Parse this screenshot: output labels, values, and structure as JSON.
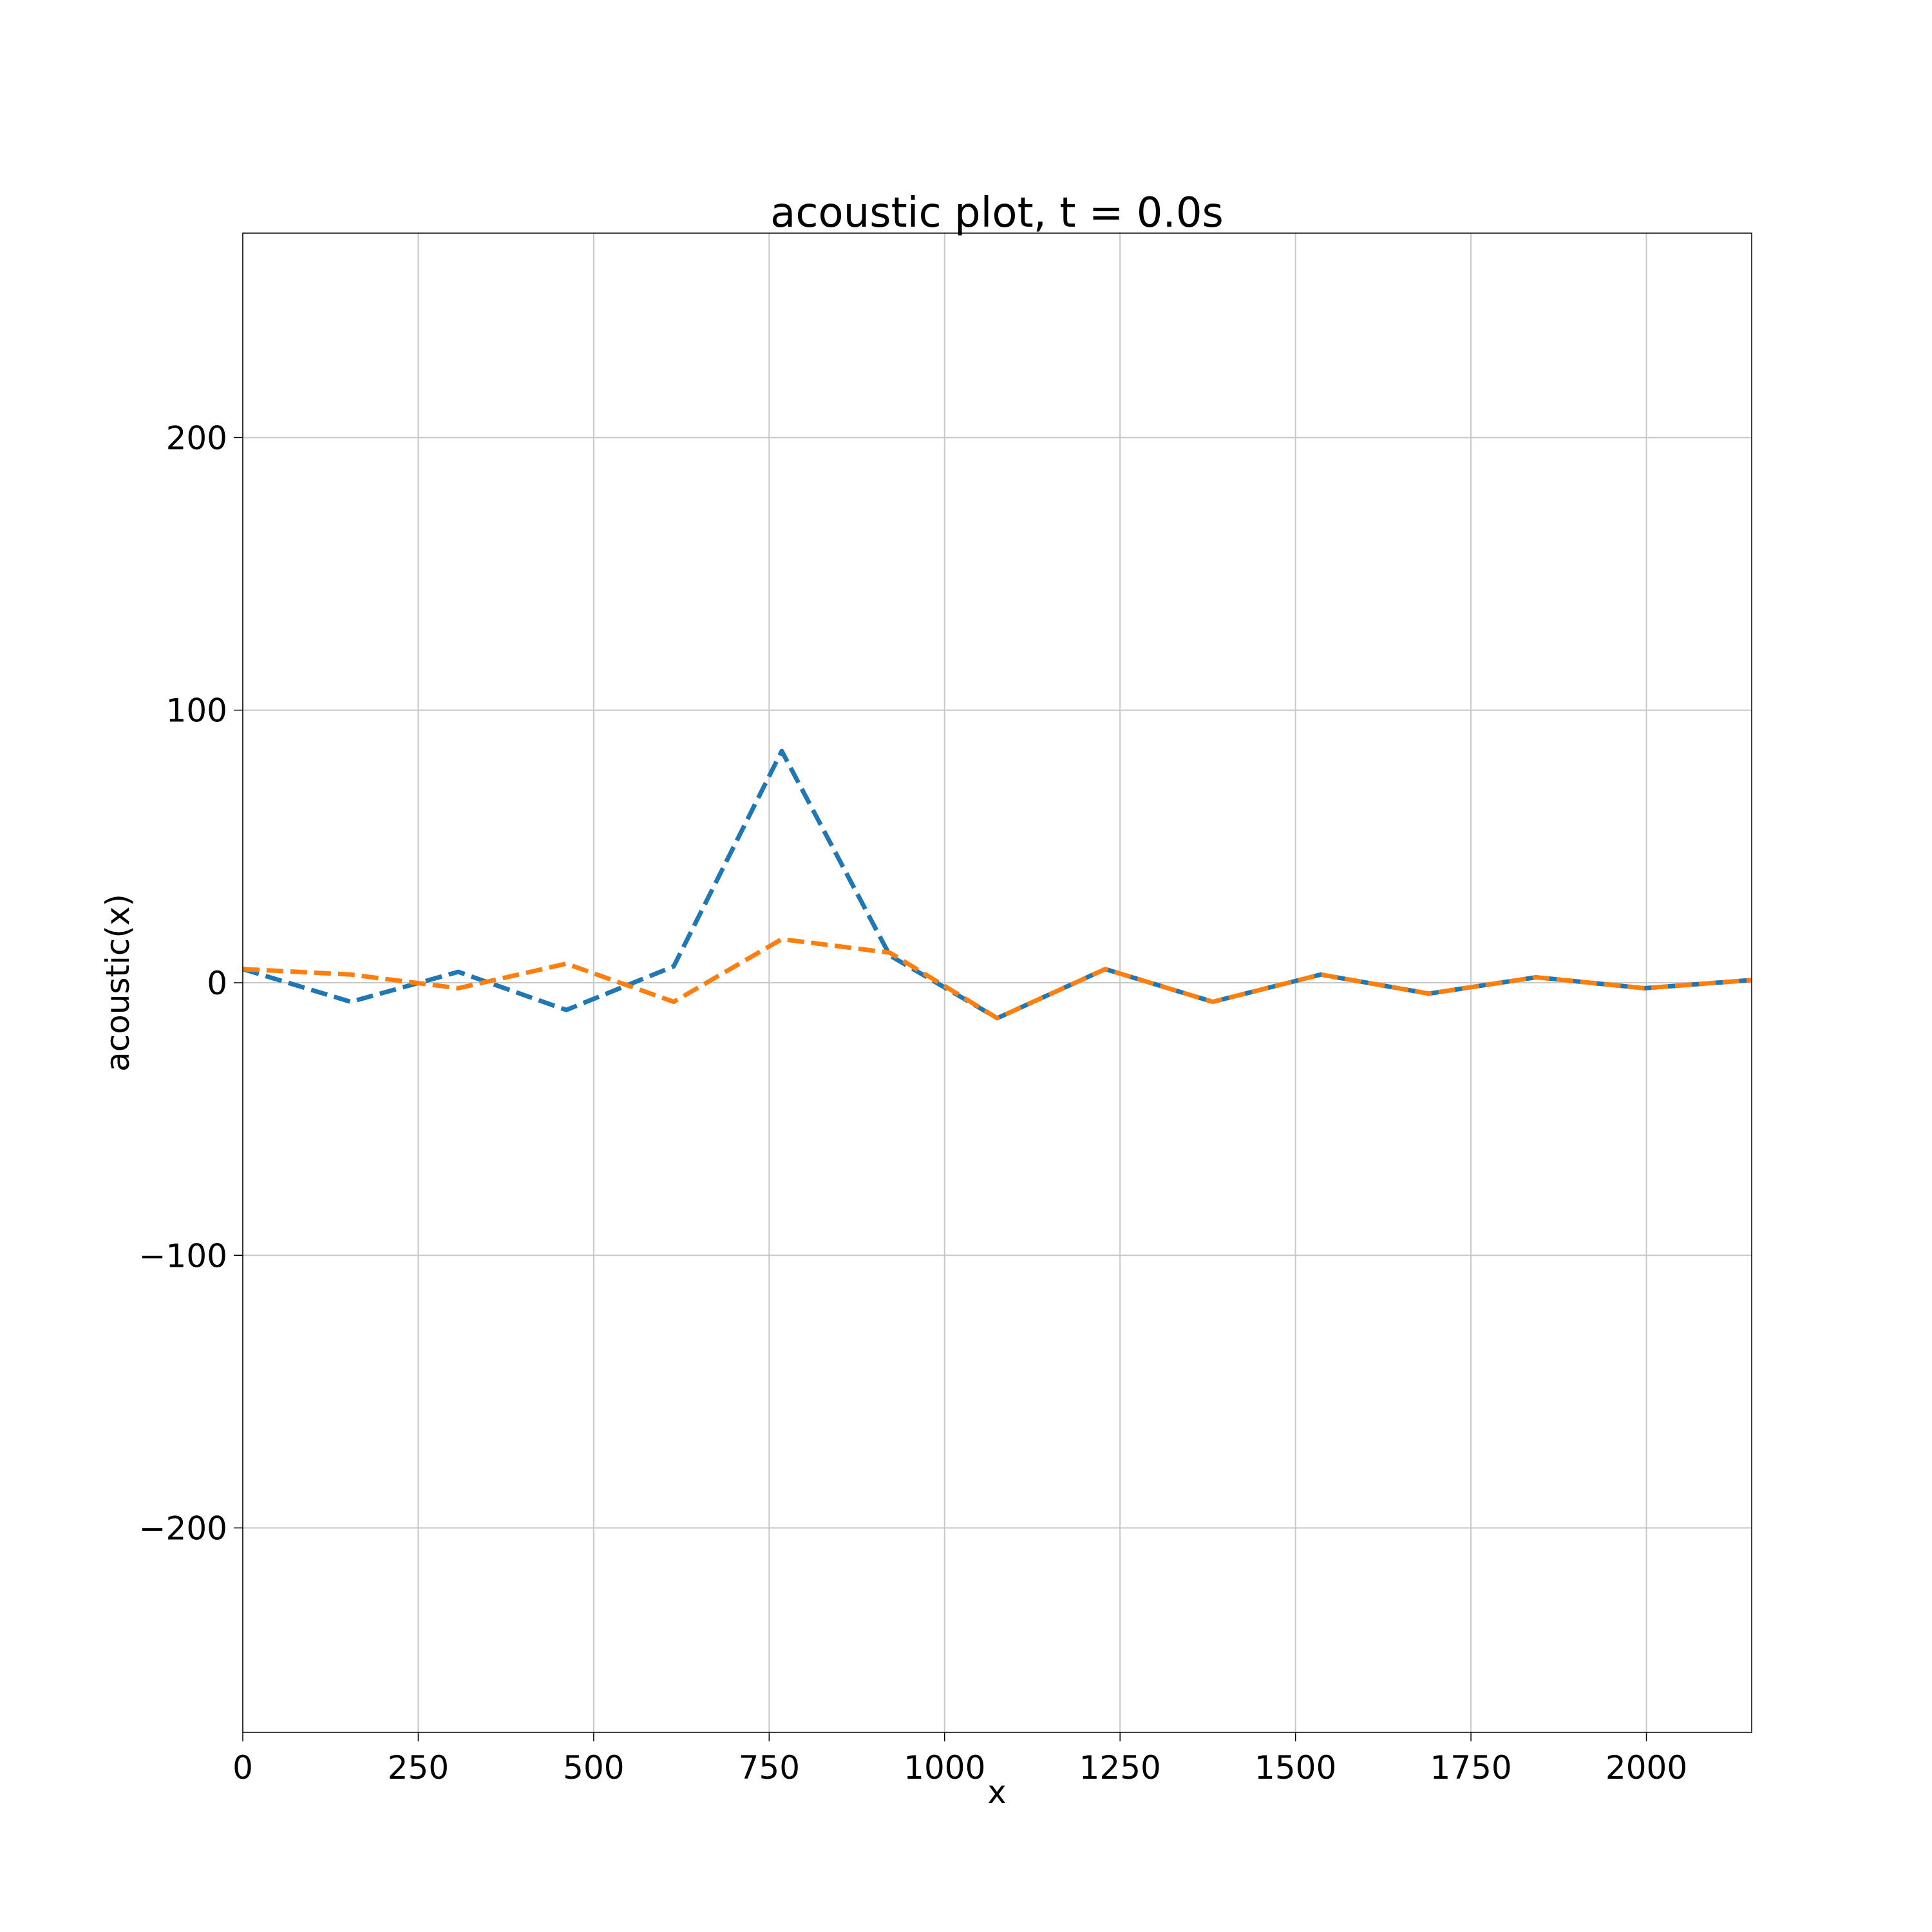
{
  "chart_data": {
    "type": "line",
    "title": "acoustic plot, t = 0.0s",
    "xlabel": "x",
    "ylabel": "acoustic(x)",
    "xlim": [
      0,
      2150
    ],
    "ylim": [
      -275,
      275
    ],
    "grid": true,
    "x_ticks": [
      0,
      250,
      500,
      750,
      1000,
      1250,
      1500,
      1750,
      2000
    ],
    "x_tick_labels": [
      "0",
      "250",
      "500",
      "750",
      "1000",
      "1250",
      "1500",
      "1750",
      "2000"
    ],
    "y_ticks": [
      -200,
      -100,
      0,
      100,
      200
    ],
    "y_tick_labels": [
      "−200",
      "−100",
      "0",
      "100",
      "200"
    ],
    "x": [
      0,
      154,
      307,
      461,
      614,
      768,
      922,
      1075,
      1229,
      1382,
      1536,
      1690,
      1843,
      1997,
      2150
    ],
    "series": [
      {
        "color": "#1f77b4",
        "style": "dashed",
        "values": [
          5,
          -7,
          4,
          -10,
          6,
          85,
          10,
          -13,
          5,
          -7,
          3,
          -4,
          2,
          -2,
          1
        ]
      },
      {
        "color": "#ff7f0e",
        "style": "dashed",
        "values": [
          5,
          3,
          -2,
          7,
          -7,
          16,
          11,
          -13,
          5,
          -7,
          3,
          -4,
          2,
          -2,
          1
        ]
      }
    ]
  }
}
